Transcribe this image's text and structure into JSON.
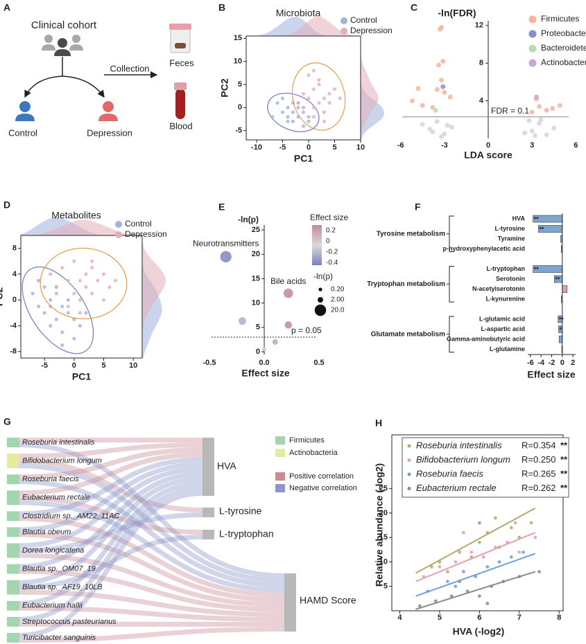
{
  "panels": {
    "A": {
      "letter": "A",
      "title": "Clinical cohort",
      "arrow_label": "Collection",
      "groups": [
        "Control",
        "Depression"
      ],
      "samples": [
        "Feces",
        "Blood"
      ]
    },
    "B": {
      "letter": "B",
      "title": "Microbiota",
      "xlabel": "PC1",
      "ylabel": "PC2",
      "xlim": [
        -12,
        10
      ],
      "ylim": [
        -7,
        15.5
      ],
      "xticks": [
        -10,
        -5,
        0,
        5,
        10
      ],
      "yticks": [
        -5,
        0,
        5,
        10,
        15
      ],
      "series": [
        {
          "name": "Control",
          "color": "#9fb3de",
          "ellipse_color": "#7f7fc0",
          "x": [
            -6,
            -5,
            -4,
            -4,
            -3,
            -3,
            -2,
            -2,
            -1,
            -1,
            0,
            -5,
            -3,
            -2,
            -7,
            -1,
            -4,
            0
          ],
          "y": [
            1,
            -1,
            0,
            -2,
            1,
            -3,
            0,
            -2,
            -1,
            -4,
            -3,
            2,
            -1,
            1,
            -2,
            0,
            -3,
            -2
          ]
        },
        {
          "name": "Depression",
          "color": "#e3aeb8",
          "ellipse_color": "#e3a04f",
          "x": [
            -1,
            0,
            1,
            1,
            2,
            2,
            3,
            3,
            4,
            5,
            0,
            2,
            4,
            1,
            3,
            -2,
            6,
            1
          ],
          "y": [
            3,
            2,
            4,
            0,
            5,
            1,
            2,
            -1,
            3,
            4,
            7,
            6,
            1,
            -2,
            -3,
            1,
            2,
            8
          ]
        }
      ]
    },
    "C": {
      "letter": "C",
      "ylabel": "-ln(FDR)",
      "xlabel": "LDA score",
      "xlim": [
        -6.6,
        6.6
      ],
      "ylim": [
        0,
        12.5
      ],
      "xticks": [
        -6,
        -3,
        0,
        3,
        6
      ],
      "yticks": [
        4,
        8,
        12
      ],
      "threshold": 2.3,
      "threshold_label": "FDR = 0.1",
      "series": [
        {
          "name": "Firmicutes",
          "color": "#f3b5a0",
          "x": [
            -3.2,
            -3.3,
            -3.1,
            -3.4,
            -3.5,
            -4.8,
            -5.2,
            -4.5,
            -3.8,
            -3.0,
            -2.6,
            3.5,
            4.0,
            4.4,
            4.9,
            3.0,
            3.3,
            -3.2
          ],
          "y": [
            11.8,
            11.6,
            8.2,
            7.8,
            5.2,
            5.3,
            4.0,
            3.5,
            3.3,
            4.9,
            4.4,
            3.4,
            3.0,
            3.2,
            3.5,
            2.8,
            4.2,
            6.2
          ]
        },
        {
          "name": "Proteobacteria",
          "color": "#8c8cc8",
          "x": [
            -3.1
          ],
          "y": [
            5.5
          ]
        },
        {
          "name": "Bacteroidetes",
          "color": "#b5dcb5",
          "x": [
            -3.6
          ],
          "y": [
            3.0
          ]
        },
        {
          "name": "Actinobacteria",
          "color": "#c3a8dc",
          "x": [
            3.3
          ],
          "y": [
            4.4
          ]
        }
      ],
      "nonsignificant": {
        "color": "#d3d3d3",
        "x": [
          -4,
          -3.5,
          -3,
          -2.5,
          -3.2,
          -4.5,
          3,
          3.5,
          4,
          2.8,
          3.2,
          4.5,
          -3.8,
          3.6,
          -2.8,
          2.5
        ],
        "y": [
          1,
          1.8,
          0.5,
          1.2,
          0.2,
          1.5,
          0.8,
          1.6,
          0.4,
          1.9,
          0.3,
          1.1,
          0.7,
          2,
          1.4,
          0.6
        ]
      }
    },
    "D": {
      "letter": "D",
      "title": "Metabolites",
      "xlabel": "PC1",
      "ylabel": "PC2",
      "xlim": [
        -9,
        11.5
      ],
      "ylim": [
        -9,
        10
      ],
      "xticks": [
        -5,
        0,
        5,
        10
      ],
      "yticks": [
        -8,
        -4,
        0,
        4,
        8
      ],
      "series": [
        {
          "name": "Control",
          "color": "#9fb3de",
          "ellipse_color": "#7f7fc0",
          "x": [
            -7,
            -6,
            -5,
            -5,
            -4,
            -4,
            -3,
            -3,
            -2,
            -2,
            -1,
            -1,
            0,
            0,
            1,
            -6,
            -3,
            -2,
            -4,
            2
          ],
          "y": [
            1,
            -1,
            2,
            -2,
            0,
            -4,
            1,
            -3,
            -1,
            -5,
            0,
            -2,
            -3,
            -6,
            -4,
            3,
            2,
            -7,
            -1,
            -2
          ]
        },
        {
          "name": "Depression",
          "color": "#e3aeb8",
          "ellipse_color": "#e3a04f",
          "x": [
            -4,
            -3,
            -2,
            -1,
            0,
            0,
            1,
            1,
            2,
            2,
            3,
            3,
            4,
            5,
            6,
            7,
            -1,
            1,
            3,
            5
          ],
          "y": [
            4,
            2,
            5,
            3,
            1,
            6,
            3,
            0,
            4,
            2,
            5,
            1,
            3,
            4,
            2,
            3,
            -1,
            -2,
            6,
            0
          ]
        }
      ]
    },
    "E": {
      "letter": "E",
      "ylabel": "-ln(p)",
      "xlabel": "Effect size",
      "xlim": [
        -0.5,
        0.5
      ],
      "ylim": [
        -1,
        26
      ],
      "xticks": [
        -0.5,
        {
          "value": 0,
          "label": "0.0"
        },
        0.5
      ],
      "yticks": [
        0,
        5,
        10,
        15,
        20,
        25
      ],
      "threshold": 3,
      "threshold_label": "p = 0.05",
      "points": {
        "x": [
          -0.35,
          0.22,
          -0.2,
          0.22,
          0.1,
          0
        ],
        "y": [
          19.5,
          12,
          6.3,
          5.5,
          2,
          0.5
        ],
        "labels": [
          "Neurotransmitters",
          "Bile acids",
          null,
          null,
          null,
          null
        ]
      },
      "colorbar": {
        "title": "Effect size",
        "colors": [
          "#7b7fc4",
          "#d9d9d9",
          "#c48a9a"
        ],
        "clim": [
          -0.45,
          0.3
        ],
        "ticks": [
          0.2,
          0,
          -0.2,
          -0.4
        ]
      },
      "size_legend": {
        "title": "-ln(p)",
        "ticks": [
          {
            "value": 0.2,
            "label": "0.20"
          },
          {
            "value": 2,
            "label": "2.00"
          },
          {
            "value": 20,
            "label": "20.0"
          }
        ]
      }
    },
    "F": {
      "letter": "F",
      "xlabel": "Effect size",
      "xlim": [
        -6.5,
        2.5
      ],
      "xticks": [
        -6,
        -4,
        -2,
        0,
        2
      ],
      "negative_color": "#7fa4cf",
      "positive_color": "#d9a3b0",
      "highlight_color": "#e03030",
      "groups": [
        {
          "name": "Tyrosine metabolism",
          "items": [
            {
              "name": "HVA",
              "value": -5.5,
              "sig": "**",
              "highlight": true
            },
            {
              "name": "L-tyrosine",
              "value": -4.5,
              "sig": "**",
              "highlight": true
            },
            {
              "name": "Tyramine",
              "value": -0.3
            },
            {
              "name": "p-hydroxyphenylacetic acid",
              "value": -0.2
            }
          ]
        },
        {
          "name": "Tryptophan metabolism",
          "items": [
            {
              "name": "L-tryptophan",
              "value": -5.5,
              "sig": "**",
              "highlight": true
            },
            {
              "name": "Serotonin",
              "value": -1.5,
              "sig": "**"
            },
            {
              "name": "N-acetylserotonin",
              "value": 0.9
            },
            {
              "name": "L-kynurenine",
              "value": -0.2
            }
          ]
        },
        {
          "name": "Glutamate metabolism",
          "items": [
            {
              "name": "L-glutamic acid",
              "value": -0.8,
              "sig": "**"
            },
            {
              "name": "L-aspartic acid",
              "value": -0.7,
              "sig": "*"
            },
            {
              "name": "Gamma-aminobutyric acid",
              "value": -0.6
            },
            {
              "name": "L-glutamine",
              "value": -0.1
            }
          ]
        }
      ]
    },
    "G": {
      "letter": "G",
      "phyla": [
        "Firmicutes",
        "Actinobacteria"
      ],
      "phylum_colors": [
        "#a3d6ae",
        "#e4eaa0"
      ],
      "correlations": [
        "Positive correlation",
        "Negative correlation"
      ],
      "correlation_colors": [
        "#c98c97",
        "#8d95c9"
      ],
      "highlight_color": "#d0344a",
      "taxa": [
        {
          "name": "Roseburia intestinalis",
          "phylum": 0,
          "highlight": true
        },
        {
          "name": "Bifidobacterium longum",
          "phylum": 1,
          "highlight": true
        },
        {
          "name": "Roseburia faecis",
          "phylum": 0,
          "highlight": true
        },
        {
          "name": "Eubacterium rectale",
          "phylum": 0,
          "highlight": true
        },
        {
          "name": "Clostridium sp._AM22_11AC",
          "phylum": 0
        },
        {
          "name": "Blautia obeum",
          "phylum": 0
        },
        {
          "name": "Dorea longicatena",
          "phylum": 0
        },
        {
          "name": "Blautia sp._OM07_19",
          "phylum": 0
        },
        {
          "name": "Blautia sp._AF19_10LB",
          "phylum": 0
        },
        {
          "name": "Eubacterium hallii",
          "phylum": 0
        },
        {
          "name": "Streptococcus pasteurianus",
          "phylum": 0
        },
        {
          "name": "Turicibacter sanguinis",
          "phylum": 0
        }
      ],
      "targets": [
        "HVA",
        "L-tyrosine",
        "L-tryptophan",
        "HAMD Score"
      ],
      "links": [
        [
          0,
          0,
          1
        ],
        [
          0,
          3,
          -1
        ],
        [
          1,
          0,
          1
        ],
        [
          1,
          1,
          1
        ],
        [
          1,
          3,
          -1
        ],
        [
          2,
          0,
          1
        ],
        [
          2,
          3,
          -1
        ],
        [
          3,
          0,
          1
        ],
        [
          3,
          2,
          1
        ],
        [
          3,
          3,
          -1
        ],
        [
          4,
          0,
          -1
        ],
        [
          4,
          3,
          1
        ],
        [
          5,
          0,
          -1
        ],
        [
          5,
          3,
          1
        ],
        [
          6,
          0,
          -1
        ],
        [
          6,
          1,
          -1
        ],
        [
          6,
          3,
          1
        ],
        [
          7,
          0,
          -1
        ],
        [
          7,
          3,
          1
        ],
        [
          8,
          0,
          -1
        ],
        [
          8,
          2,
          -1
        ],
        [
          8,
          3,
          1
        ],
        [
          9,
          0,
          -1
        ],
        [
          9,
          3,
          1
        ],
        [
          10,
          0,
          -1
        ],
        [
          10,
          3,
          1
        ],
        [
          11,
          0,
          -1
        ],
        [
          11,
          3,
          1
        ]
      ]
    },
    "H": {
      "letter": "H",
      "xlabel": "HVA (-log2)",
      "ylabel": "Relative abundance (-log2)",
      "xlim": [
        3.8,
        8.1
      ],
      "ylim": [
        0,
        27.5
      ],
      "xticks": [
        4,
        5,
        6,
        7,
        8
      ],
      "yticks": [
        5,
        10,
        15,
        20,
        25
      ],
      "series": [
        {
          "name": "Roseburia intestinalis",
          "color": "#b5a96a",
          "r_label": "R=0.354",
          "sig": "**",
          "x": [
            4.8,
            5.2,
            5.5,
            5.8,
            6,
            6.2,
            6.5,
            6.8,
            7,
            7.3,
            5,
            6.4
          ],
          "y": [
            9,
            8,
            12,
            11,
            14,
            16,
            13,
            17,
            15,
            18,
            10,
            19
          ],
          "fit": [
            [
              4.4,
              7.7
            ],
            [
              7.4,
              21
            ]
          ]
        },
        {
          "name": "Bifidobacterium longum",
          "color": "#e0a0b0",
          "r_label": "R=0.250",
          "sig": "**",
          "x": [
            4.6,
            5,
            5.4,
            5.8,
            6.1,
            6.4,
            6.7,
            7,
            7.4,
            5.6,
            6.9
          ],
          "y": [
            7,
            9,
            10,
            12,
            11,
            13,
            14,
            12,
            15,
            16,
            18
          ],
          "fit": [
            [
              4.4,
              6
            ],
            [
              7.4,
              16
            ]
          ]
        },
        {
          "name": "Roseburia faecis",
          "color": "#6f9fd8",
          "r_label": "R=0.265",
          "sig": "**",
          "x": [
            4.7,
            5.2,
            5.6,
            5.9,
            6.2,
            6.5,
            6.8,
            7.1,
            6,
            5.4
          ],
          "y": [
            4,
            6,
            8,
            7,
            9,
            10,
            11,
            12,
            18,
            5
          ],
          "fit": [
            [
              4.4,
              3
            ],
            [
              7.4,
              11.7
            ]
          ]
        },
        {
          "name": "Eubacterium rectale",
          "color": "#8a8a8a",
          "r_label": "R=0.262",
          "sig": "**",
          "x": [
            4.5,
            4.9,
            5.3,
            5.7,
            6,
            6.3,
            6.6,
            7,
            7.5,
            5.5,
            6.2
          ],
          "y": [
            1,
            2,
            3,
            4,
            3,
            5,
            6,
            7,
            8,
            6,
            1.5
          ],
          "fit": [
            [
              4.4,
              0.3
            ],
            [
              7.4,
              8
            ]
          ]
        }
      ]
    }
  }
}
